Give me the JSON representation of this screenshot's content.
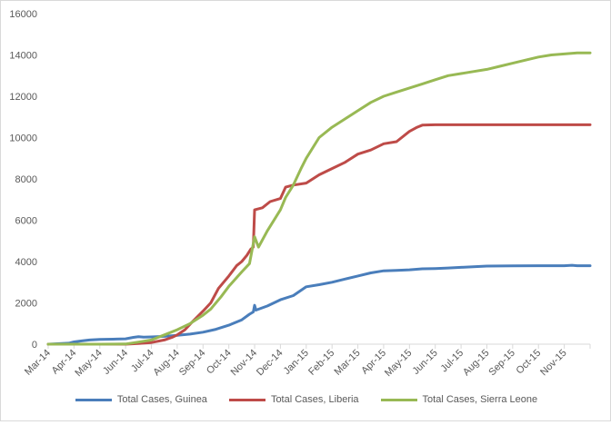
{
  "chart_data": {
    "type": "line",
    "x_labels": [
      "Mar-14",
      "Apr-14",
      "May-14",
      "Jun-14",
      "Jul-14",
      "Aug-14",
      "Sep-14",
      "Oct-14",
      "Nov-14",
      "Dec-14",
      "Jan-15",
      "Feb-15",
      "Mar-15",
      "Apr-15",
      "May-15",
      "Jun-15",
      "Jul-15",
      "Aug-15",
      "Sep-15",
      "Oct-15",
      "Nov-15"
    ],
    "ylim": [
      0,
      16000
    ],
    "y_ticks": [
      0,
      2000,
      4000,
      6000,
      8000,
      10000,
      12000,
      14000,
      16000
    ],
    "grid": false,
    "legend_position": "bottom",
    "series": [
      {
        "name": "Total Cases, Guinea",
        "color": "#4a7ebb",
        "points": [
          [
            0,
            0
          ],
          [
            0.8,
            50
          ],
          [
            1,
            110
          ],
          [
            1.3,
            160
          ],
          [
            1.6,
            200
          ],
          [
            2,
            230
          ],
          [
            2.5,
            240
          ],
          [
            3,
            260
          ],
          [
            3.3,
            330
          ],
          [
            3.5,
            360
          ],
          [
            3.7,
            340
          ],
          [
            4,
            350
          ],
          [
            4.5,
            380
          ],
          [
            5,
            430
          ],
          [
            5.5,
            490
          ],
          [
            6,
            580
          ],
          [
            6.5,
            720
          ],
          [
            7,
            920
          ],
          [
            7.5,
            1180
          ],
          [
            7.8,
            1450
          ],
          [
            7.95,
            1560
          ],
          [
            8,
            1880
          ],
          [
            8.05,
            1650
          ],
          [
            8.5,
            1850
          ],
          [
            9,
            2150
          ],
          [
            9.5,
            2350
          ],
          [
            10,
            2780
          ],
          [
            10.5,
            2880
          ],
          [
            11,
            3000
          ],
          [
            11.5,
            3150
          ],
          [
            12,
            3300
          ],
          [
            12.5,
            3450
          ],
          [
            13,
            3550
          ],
          [
            13.5,
            3570
          ],
          [
            14,
            3600
          ],
          [
            14.5,
            3650
          ],
          [
            15,
            3660
          ],
          [
            15.5,
            3690
          ],
          [
            16,
            3720
          ],
          [
            17,
            3780
          ],
          [
            18,
            3790
          ],
          [
            19,
            3800
          ],
          [
            20,
            3800
          ],
          [
            20.3,
            3820
          ],
          [
            20.5,
            3800
          ],
          [
            21,
            3800
          ]
        ]
      },
      {
        "name": "Total Cases, Liberia",
        "color": "#be4b48",
        "points": [
          [
            0,
            0
          ],
          [
            1,
            0
          ],
          [
            2,
            0
          ],
          [
            3,
            0
          ],
          [
            3.5,
            30
          ],
          [
            4,
            80
          ],
          [
            4.5,
            200
          ],
          [
            4.8,
            330
          ],
          [
            5,
            450
          ],
          [
            5.3,
            700
          ],
          [
            5.6,
            1100
          ],
          [
            6,
            1600
          ],
          [
            6.3,
            2000
          ],
          [
            6.6,
            2700
          ],
          [
            7,
            3300
          ],
          [
            7.3,
            3800
          ],
          [
            7.5,
            4000
          ],
          [
            7.7,
            4300
          ],
          [
            7.85,
            4600
          ],
          [
            7.95,
            4700
          ],
          [
            8,
            6500
          ],
          [
            8.3,
            6600
          ],
          [
            8.6,
            6900
          ],
          [
            9,
            7050
          ],
          [
            9.2,
            7600
          ],
          [
            9.5,
            7700
          ],
          [
            10,
            7800
          ],
          [
            10.5,
            8200
          ],
          [
            11,
            8500
          ],
          [
            11.5,
            8800
          ],
          [
            12,
            9200
          ],
          [
            12.5,
            9400
          ],
          [
            13,
            9700
          ],
          [
            13.5,
            9800
          ],
          [
            14,
            10300
          ],
          [
            14.3,
            10500
          ],
          [
            14.5,
            10600
          ],
          [
            15,
            10620
          ],
          [
            16,
            10620
          ],
          [
            17,
            10620
          ],
          [
            18,
            10620
          ],
          [
            19,
            10620
          ],
          [
            20,
            10620
          ],
          [
            21,
            10620
          ]
        ]
      },
      {
        "name": "Total Cases, Sierra Leone",
        "color": "#98b954",
        "points": [
          [
            0,
            0
          ],
          [
            1,
            0
          ],
          [
            2,
            0
          ],
          [
            3,
            10
          ],
          [
            3.5,
            100
          ],
          [
            4,
            200
          ],
          [
            4.5,
            450
          ],
          [
            5,
            700
          ],
          [
            5.5,
            1000
          ],
          [
            6,
            1400
          ],
          [
            6.3,
            1700
          ],
          [
            6.7,
            2300
          ],
          [
            7,
            2800
          ],
          [
            7.5,
            3500
          ],
          [
            7.8,
            3900
          ],
          [
            8,
            5200
          ],
          [
            8.15,
            4700
          ],
          [
            8.5,
            5500
          ],
          [
            9,
            6500
          ],
          [
            9.2,
            7100
          ],
          [
            9.5,
            7700
          ],
          [
            9.8,
            8500
          ],
          [
            10,
            9000
          ],
          [
            10.5,
            10000
          ],
          [
            11,
            10500
          ],
          [
            11.5,
            10900
          ],
          [
            12,
            11300
          ],
          [
            12.5,
            11700
          ],
          [
            13,
            12000
          ],
          [
            13.5,
            12200
          ],
          [
            14,
            12400
          ],
          [
            14.5,
            12600
          ],
          [
            15,
            12800
          ],
          [
            15.5,
            13000
          ],
          [
            16,
            13100
          ],
          [
            16.5,
            13200
          ],
          [
            17,
            13300
          ],
          [
            17.5,
            13450
          ],
          [
            18,
            13600
          ],
          [
            18.5,
            13750
          ],
          [
            19,
            13900
          ],
          [
            19.5,
            14000
          ],
          [
            20,
            14050
          ],
          [
            20.5,
            14100
          ],
          [
            21,
            14100
          ]
        ]
      }
    ]
  }
}
